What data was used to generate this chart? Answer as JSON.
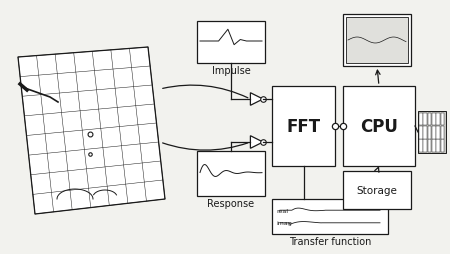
{
  "bg_color": "#f2f2ee",
  "line_color": "#1a1a1a",
  "figsize": [
    4.5,
    2.55
  ],
  "dpi": 100,
  "title": "Transfer function",
  "fft_label": "FFT",
  "cpu_label": "CPU",
  "storage_label": "Storage",
  "impulse_label": "Impulse",
  "response_label": "Response"
}
